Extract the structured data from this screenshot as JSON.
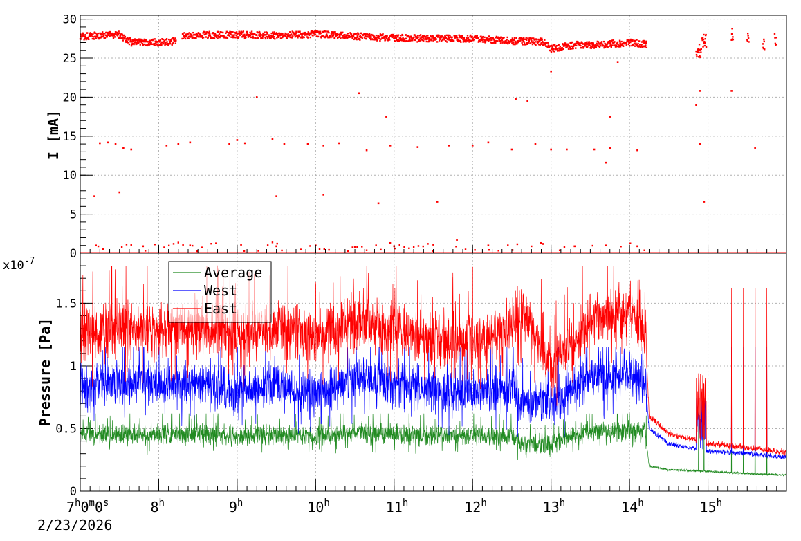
{
  "chart_data": [
    {
      "type": "scatter",
      "panel": "top",
      "ylabel": "I [mA]",
      "ylim": [
        0,
        30.5
      ],
      "yticks": [
        0,
        5,
        10,
        15,
        20,
        25,
        30
      ],
      "xlim_hours": [
        7.0,
        16.0
      ],
      "grid": true,
      "series": [
        {
          "color": "#ff0000",
          "main_band": [
            [
              7.0,
              27.8
            ],
            [
              7.5,
              28.0
            ],
            [
              7.65,
              27.0
            ],
            [
              8.0,
              27.0
            ],
            [
              8.25,
              27.2
            ],
            [
              8.3,
              27.9
            ],
            [
              9.0,
              28.0
            ],
            [
              9.5,
              27.9
            ],
            [
              10.0,
              28.1
            ],
            [
              10.5,
              27.8
            ],
            [
              11.0,
              27.6
            ],
            [
              11.5,
              27.5
            ],
            [
              12.0,
              27.5
            ],
            [
              12.5,
              27.2
            ],
            [
              12.9,
              27.1
            ],
            [
              13.0,
              26.2
            ],
            [
              13.3,
              26.7
            ],
            [
              13.6,
              26.7
            ],
            [
              14.0,
              27.0
            ],
            [
              14.2,
              26.8
            ]
          ],
          "band_gaps_hours": [
            [
              8.22,
              8.3
            ],
            [
              14.22,
              14.85
            ],
            [
              14.98,
              15.3
            ],
            [
              15.32,
              15.5
            ],
            [
              15.5,
              15.7
            ],
            [
              15.7,
              15.85
            ],
            [
              15.85,
              16.0
            ]
          ],
          "zero_baseline": true,
          "outliers": [
            [
              7.18,
              7.3
            ],
            [
              7.5,
              7.8
            ],
            [
              7.25,
              14.1
            ],
            [
              7.35,
              14.2
            ],
            [
              7.45,
              14.0
            ],
            [
              7.55,
              13.5
            ],
            [
              7.65,
              13.3
            ],
            [
              8.1,
              13.8
            ],
            [
              8.25,
              14.0
            ],
            [
              8.4,
              14.2
            ],
            [
              8.9,
              14.0
            ],
            [
              9.0,
              14.5
            ],
            [
              9.1,
              14.1
            ],
            [
              9.25,
              20.0
            ],
            [
              9.45,
              14.6
            ],
            [
              9.5,
              7.3
            ],
            [
              9.6,
              14.0
            ],
            [
              9.9,
              14.0
            ],
            [
              10.1,
              13.8
            ],
            [
              10.1,
              7.5
            ],
            [
              10.3,
              14.1
            ],
            [
              10.55,
              20.5
            ],
            [
              10.65,
              13.2
            ],
            [
              10.8,
              6.4
            ],
            [
              10.9,
              17.5
            ],
            [
              10.95,
              13.8
            ],
            [
              11.3,
              13.6
            ],
            [
              11.55,
              6.6
            ],
            [
              11.7,
              13.8
            ],
            [
              12.0,
              13.8
            ],
            [
              12.2,
              14.2
            ],
            [
              12.5,
              13.3
            ],
            [
              12.55,
              19.8
            ],
            [
              12.7,
              19.5
            ],
            [
              12.8,
              14.0
            ],
            [
              13.0,
              23.3
            ],
            [
              13.0,
              13.3
            ],
            [
              13.2,
              13.3
            ],
            [
              13.55,
              13.3
            ],
            [
              13.7,
              11.6
            ],
            [
              13.75,
              13.5
            ],
            [
              13.75,
              17.5
            ],
            [
              13.85,
              24.5
            ],
            [
              14.1,
              13.2
            ],
            [
              14.85,
              19.0
            ],
            [
              14.9,
              20.8
            ],
            [
              14.9,
              14.0
            ],
            [
              14.95,
              6.6
            ],
            [
              15.3,
              20.8
            ],
            [
              15.6,
              13.5
            ],
            [
              7.2,
              1.0
            ],
            [
              7.8,
              0.9
            ],
            [
              8.4,
              1.0
            ],
            [
              9.05,
              1.1
            ],
            [
              9.5,
              0.9
            ],
            [
              10.0,
              1.0
            ],
            [
              10.5,
              0.8
            ],
            [
              11.0,
              0.9
            ],
            [
              11.5,
              1.1
            ],
            [
              11.8,
              1.7
            ],
            [
              12.2,
              1.0
            ],
            [
              12.9,
              1.2
            ],
            [
              13.3,
              0.9
            ],
            [
              13.7,
              1.0
            ],
            [
              14.1,
              0.9
            ]
          ]
        }
      ]
    },
    {
      "type": "line",
      "panel": "bottom",
      "ylabel": "Pressure [Pa]",
      "y_multiplier": "x10",
      "y_exponent": "-7",
      "ylim": [
        0,
        1.9
      ],
      "yticks": [
        "0",
        "0.5",
        "1",
        "1.5"
      ],
      "ytick_values": [
        0,
        0.5,
        1.0,
        1.5
      ],
      "xlim_hours": [
        7.0,
        16.0
      ],
      "grid": true,
      "legend": "top-left",
      "series": [
        {
          "name": "Average",
          "color": "#228b22",
          "points": [
            [
              7.0,
              0.45
            ],
            [
              7.5,
              0.45
            ],
            [
              8.0,
              0.45
            ],
            [
              8.5,
              0.46
            ],
            [
              9.0,
              0.44
            ],
            [
              9.5,
              0.46
            ],
            [
              10.0,
              0.44
            ],
            [
              10.5,
              0.47
            ],
            [
              11.0,
              0.46
            ],
            [
              11.5,
              0.44
            ],
            [
              12.0,
              0.44
            ],
            [
              12.5,
              0.44
            ],
            [
              12.6,
              0.38
            ],
            [
              13.0,
              0.38
            ],
            [
              13.5,
              0.47
            ],
            [
              14.0,
              0.49
            ],
            [
              14.2,
              0.47
            ],
            [
              14.25,
              0.2
            ],
            [
              14.5,
              0.17
            ],
            [
              15.0,
              0.16
            ],
            [
              15.5,
              0.14
            ],
            [
              16.0,
              0.13
            ]
          ],
          "noise": 0.08,
          "spike_max": 0.62
        },
        {
          "name": "West",
          "color": "#0000ff",
          "points": [
            [
              7.0,
              0.82
            ],
            [
              7.5,
              0.88
            ],
            [
              8.0,
              0.85
            ],
            [
              8.5,
              0.86
            ],
            [
              9.0,
              0.78
            ],
            [
              9.5,
              0.86
            ],
            [
              10.0,
              0.78
            ],
            [
              10.5,
              0.9
            ],
            [
              11.0,
              0.85
            ],
            [
              11.5,
              0.8
            ],
            [
              12.0,
              0.78
            ],
            [
              12.5,
              0.82
            ],
            [
              12.6,
              0.7
            ],
            [
              13.0,
              0.7
            ],
            [
              13.5,
              0.9
            ],
            [
              14.0,
              0.92
            ],
            [
              14.2,
              0.88
            ],
            [
              14.25,
              0.5
            ],
            [
              14.5,
              0.38
            ],
            [
              15.0,
              0.32
            ],
            [
              15.5,
              0.3
            ],
            [
              16.0,
              0.27
            ]
          ],
          "noise": 0.18,
          "spike_max": 1.15
        },
        {
          "name": "East",
          "color": "#ff0000",
          "points": [
            [
              7.0,
              1.25
            ],
            [
              7.5,
              1.3
            ],
            [
              8.0,
              1.28
            ],
            [
              8.5,
              1.3
            ],
            [
              9.0,
              1.22
            ],
            [
              9.5,
              1.3
            ],
            [
              10.0,
              1.22
            ],
            [
              10.5,
              1.35
            ],
            [
              11.0,
              1.28
            ],
            [
              11.5,
              1.22
            ],
            [
              12.0,
              1.22
            ],
            [
              12.5,
              1.3
            ],
            [
              12.6,
              1.45
            ],
            [
              13.0,
              1.0
            ],
            [
              13.5,
              1.35
            ],
            [
              14.0,
              1.45
            ],
            [
              14.2,
              1.3
            ],
            [
              14.25,
              0.6
            ],
            [
              14.5,
              0.46
            ],
            [
              15.0,
              0.38
            ],
            [
              15.5,
              0.35
            ],
            [
              16.0,
              0.31
            ]
          ],
          "noise": 0.22,
          "spike_max": 1.8
        }
      ]
    }
  ],
  "x_axis": {
    "ticks": [
      {
        "hour": 7,
        "base": "7",
        "sup": "h",
        "mid": "0",
        "sup2": "m",
        "end": "0",
        "sup3": "s"
      },
      {
        "hour": 8,
        "base": "8",
        "sup": "h"
      },
      {
        "hour": 9,
        "base": "9",
        "sup": "h"
      },
      {
        "hour": 10,
        "base": "10",
        "sup": "h"
      },
      {
        "hour": 11,
        "base": "11",
        "sup": "h"
      },
      {
        "hour": 12,
        "base": "12",
        "sup": "h"
      },
      {
        "hour": 13,
        "base": "13",
        "sup": "h"
      },
      {
        "hour": 14,
        "base": "14",
        "sup": "h"
      },
      {
        "hour": 15,
        "base": "15",
        "sup": "h"
      }
    ],
    "date": "2/23/2026"
  }
}
